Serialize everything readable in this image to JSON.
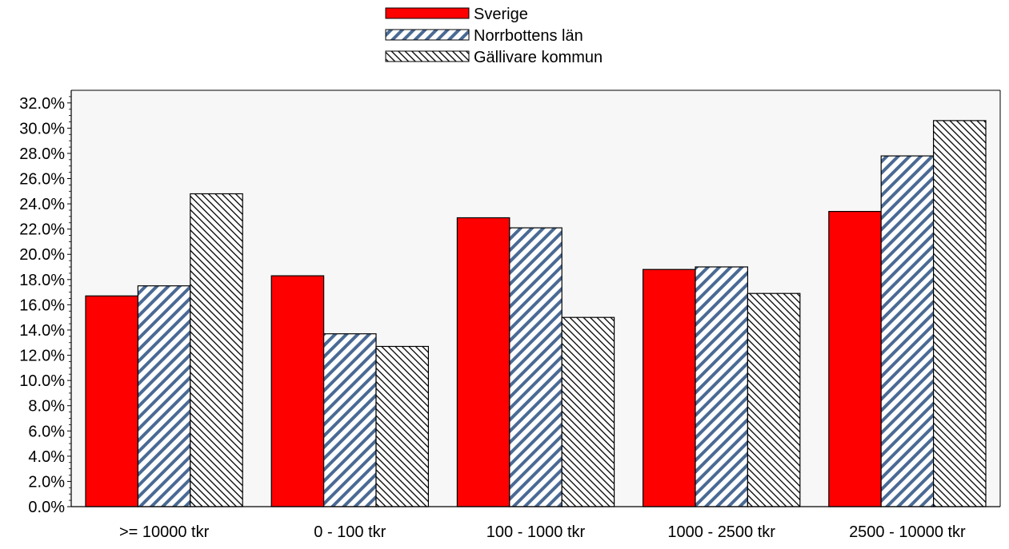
{
  "chart_data": {
    "type": "bar",
    "categories": [
      ">= 10000 tkr",
      "0 - 100 tkr",
      "100 - 1000 tkr",
      "1000 - 2500 tkr",
      "2500 - 10000 tkr"
    ],
    "series": [
      {
        "name": "Sverige",
        "values": [
          16.7,
          18.3,
          22.9,
          18.8,
          23.4
        ],
        "color": "#ff0000",
        "pattern": "solid"
      },
      {
        "name": "Norrbottens län",
        "values": [
          17.5,
          13.7,
          22.1,
          19.0,
          27.8
        ],
        "color": "#4a6a94",
        "pattern": "diagonal-blue"
      },
      {
        "name": "Gällivare kommun",
        "values": [
          24.8,
          12.7,
          15.0,
          16.9,
          30.6
        ],
        "color": "#000000",
        "pattern": "diagonal-black"
      }
    ],
    "title": "",
    "xlabel": "",
    "ylabel": "",
    "ylim": [
      0,
      33
    ],
    "y_ticks": [
      "0.0%",
      "2.0%",
      "4.0%",
      "6.0%",
      "8.0%",
      "10.0%",
      "12.0%",
      "14.0%",
      "16.0%",
      "18.0%",
      "20.0%",
      "22.0%",
      "24.0%",
      "26.0%",
      "28.0%",
      "30.0%",
      "32.0%"
    ],
    "y_tick_values": [
      0,
      2,
      4,
      6,
      8,
      10,
      12,
      14,
      16,
      18,
      20,
      22,
      24,
      26,
      28,
      30,
      32
    ],
    "legend_position": "top-center",
    "plot_background": "#f7f7f7",
    "grid": false
  }
}
